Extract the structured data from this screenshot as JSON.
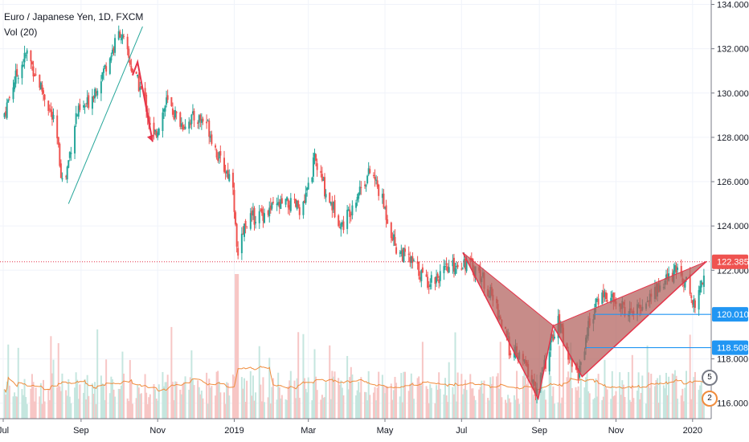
{
  "legend": {
    "symbol": "Euro / Japanese Yen, 1D, FXCM",
    "volume": "Vol (20)"
  },
  "icons": {
    "events_a": "5",
    "events_b": "2"
  },
  "colors": {
    "up": "#26a69a",
    "down": "#ef5350",
    "up_vol": "#c5e6df",
    "down_vol": "#f7c6c5",
    "vol_ma": "#f08c3c",
    "pattern_fill": "#b2605c",
    "pattern_line": "#e5344a",
    "trend": "#26a69a",
    "level": "#2196f3",
    "price_line": "#e5344a",
    "price_badge": "#ef5350",
    "level_badge": "#2196f3"
  },
  "chart_data": {
    "type": "candlestick",
    "title": "Euro / Japanese Yen, 1D, FXCM",
    "y_axis": {
      "side": "right",
      "ticks": [
        "134.000",
        "132.000",
        "130.000",
        "128.000",
        "126.000",
        "124.000",
        "122.000",
        "118.000",
        "116.000"
      ],
      "tick_values": [
        134,
        132,
        130,
        128,
        126,
        124,
        122,
        118,
        116
      ],
      "range": [
        115.3,
        134.2
      ]
    },
    "x_axis": {
      "ticks": [
        "Jul",
        "Sep",
        "Nov",
        "2019",
        "Mar",
        "May",
        "Jul",
        "Sep",
        "Nov",
        "2020"
      ],
      "tick_dates": [
        "2018-07-01",
        "2018-09-01",
        "2018-11-01",
        "2019-01-01",
        "2019-03-01",
        "2019-05-01",
        "2019-07-01",
        "2019-09-01",
        "2019-11-01",
        "2020-01-01"
      ],
      "range": [
        "2018-07-01",
        "2020-01-12"
      ]
    },
    "price_path": [
      [
        "2018-07-01",
        128.9
      ],
      [
        "2018-07-10",
        130.6
      ],
      [
        "2018-07-20",
        131.8
      ],
      [
        "2018-07-27",
        130.8
      ],
      [
        "2018-08-05",
        129.6
      ],
      [
        "2018-08-12",
        128.3
      ],
      [
        "2018-08-18",
        125.6
      ],
      [
        "2018-08-28",
        129.0
      ],
      [
        "2018-09-05",
        129.4
      ],
      [
        "2018-09-15",
        130.5
      ],
      [
        "2018-09-25",
        131.8
      ],
      [
        "2018-10-02",
        132.8
      ],
      [
        "2018-10-12",
        131.0
      ],
      [
        "2018-10-22",
        129.7
      ],
      [
        "2018-10-28",
        127.8
      ],
      [
        "2018-11-08",
        129.6
      ],
      [
        "2018-11-20",
        128.6
      ],
      [
        "2018-12-01",
        128.9
      ],
      [
        "2018-12-10",
        128.7
      ],
      [
        "2018-12-20",
        127.0
      ],
      [
        "2018-12-31",
        126.0
      ],
      [
        "2019-01-03",
        122.8
      ],
      [
        "2019-01-10",
        124.2
      ],
      [
        "2019-01-25",
        124.6
      ],
      [
        "2019-02-10",
        125.0
      ],
      [
        "2019-02-25",
        124.8
      ],
      [
        "2019-03-06",
        127.0
      ],
      [
        "2019-03-15",
        125.5
      ],
      [
        "2019-03-28",
        124.0
      ],
      [
        "2019-04-10",
        125.6
      ],
      [
        "2019-04-20",
        126.5
      ],
      [
        "2019-04-28",
        125.3
      ],
      [
        "2019-05-10",
        123.0
      ],
      [
        "2019-05-25",
        122.2
      ],
      [
        "2019-06-03",
        121.5
      ],
      [
        "2019-06-15",
        121.8
      ],
      [
        "2019-06-25",
        122.2
      ],
      [
        "2019-07-03",
        122.4
      ],
      [
        "2019-07-15",
        121.9
      ],
      [
        "2019-07-28",
        120.5
      ],
      [
        "2019-08-08",
        118.5
      ],
      [
        "2019-08-20",
        117.8
      ],
      [
        "2019-08-30",
        116.5
      ],
      [
        "2019-09-10",
        118.6
      ],
      [
        "2019-09-15",
        119.8
      ],
      [
        "2019-09-25",
        118.1
      ],
      [
        "2019-10-02",
        117.3
      ],
      [
        "2019-10-10",
        119.5
      ],
      [
        "2019-10-20",
        121.0
      ],
      [
        "2019-11-01",
        120.5
      ],
      [
        "2019-11-15",
        120.0
      ],
      [
        "2019-11-28",
        120.8
      ],
      [
        "2019-12-10",
        121.5
      ],
      [
        "2019-12-20",
        122.0
      ],
      [
        "2019-12-28",
        121.4
      ],
      [
        "2020-01-03",
        120.3
      ],
      [
        "2020-01-12",
        122.4
      ]
    ],
    "current_price": 122.385,
    "levels": [
      {
        "label": "120.010",
        "value": 120.01,
        "from": "2019-10-15"
      },
      {
        "label": "118.508",
        "value": 118.508,
        "from": "2019-10-08"
      }
    ],
    "price_badge": "122.385",
    "bat_pattern": [
      [
        "2019-07-02",
        122.8
      ],
      [
        "2019-08-31",
        116.2
      ],
      [
        "2019-09-12",
        119.5
      ],
      [
        "2019-10-05",
        117.2
      ],
      [
        "2020-01-12",
        122.4
      ]
    ],
    "trend_line": [
      [
        "2018-08-22",
        125.0
      ],
      [
        "2018-10-20",
        133.0
      ]
    ],
    "arrow": [
      [
        "2018-10-12",
        130.8
      ],
      [
        "2018-10-16",
        131.4
      ],
      [
        "2018-10-28",
        127.8
      ]
    ],
    "volume_spike": "2019-01-03"
  }
}
